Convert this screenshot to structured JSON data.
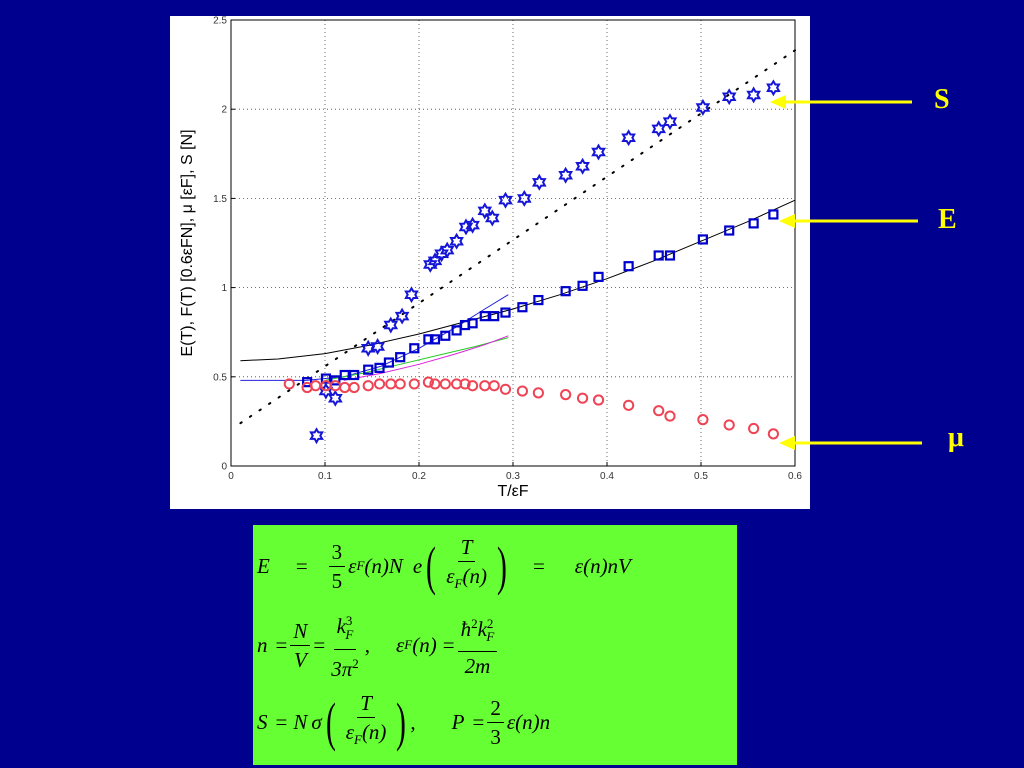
{
  "chart_data": {
    "type": "scatter",
    "xlabel": "T/εF",
    "ylabel": "E(T), F(T) [0.6εFN], μ [εF], S [N]",
    "xlim": [
      0,
      0.6
    ],
    "ylim": [
      0,
      2.5
    ],
    "xticks": [
      "0",
      "0.1",
      "0.2",
      "0.3",
      "0.4",
      "0.5",
      "0.6"
    ],
    "yticks": [
      "0",
      "0.5",
      "1",
      "1.5",
      "2",
      "2.5"
    ],
    "grid": true,
    "series": [
      {
        "marker": "star",
        "color": "#1515d8",
        "x": [
          0.091,
          0.101,
          0.111,
          0.146,
          0.156,
          0.17,
          0.182,
          0.192,
          0.212,
          0.217,
          0.224,
          0.23,
          0.24,
          0.25,
          0.257,
          0.27,
          0.278,
          0.292,
          0.312,
          0.328,
          0.356,
          0.374,
          0.391,
          0.423,
          0.455,
          0.467,
          0.502,
          0.53,
          0.556,
          0.577
        ],
        "y": [
          0.17,
          0.42,
          0.38,
          0.66,
          0.67,
          0.79,
          0.84,
          0.96,
          1.13,
          1.15,
          1.19,
          1.21,
          1.26,
          1.34,
          1.35,
          1.43,
          1.39,
          1.49,
          1.5,
          1.59,
          1.63,
          1.68,
          1.76,
          1.84,
          1.89,
          1.93,
          2.01,
          2.07,
          2.08,
          2.12
        ]
      },
      {
        "marker": "square",
        "color": "#0000cc",
        "x": [
          0.081,
          0.101,
          0.111,
          0.121,
          0.131,
          0.146,
          0.158,
          0.168,
          0.18,
          0.195,
          0.21,
          0.217,
          0.228,
          0.24,
          0.249,
          0.257,
          0.27,
          0.28,
          0.292,
          0.31,
          0.327,
          0.356,
          0.374,
          0.391,
          0.423,
          0.455,
          0.467,
          0.502,
          0.53,
          0.556,
          0.577
        ],
        "y": [
          0.47,
          0.49,
          0.48,
          0.51,
          0.51,
          0.54,
          0.55,
          0.58,
          0.61,
          0.66,
          0.71,
          0.71,
          0.73,
          0.76,
          0.79,
          0.8,
          0.84,
          0.84,
          0.86,
          0.89,
          0.93,
          0.98,
          1.01,
          1.06,
          1.12,
          1.18,
          1.18,
          1.27,
          1.32,
          1.36,
          1.41
        ]
      },
      {
        "marker": "circle",
        "color": "#ee4455",
        "x": [
          0.062,
          0.081,
          0.09,
          0.101,
          0.111,
          0.121,
          0.131,
          0.146,
          0.158,
          0.17,
          0.18,
          0.195,
          0.21,
          0.217,
          0.228,
          0.24,
          0.249,
          0.257,
          0.27,
          0.28,
          0.292,
          0.31,
          0.327,
          0.356,
          0.374,
          0.391,
          0.423,
          0.455,
          0.467,
          0.502,
          0.53,
          0.556,
          0.577
        ],
        "y": [
          0.46,
          0.44,
          0.45,
          0.45,
          0.45,
          0.44,
          0.44,
          0.45,
          0.46,
          0.46,
          0.46,
          0.46,
          0.47,
          0.46,
          0.46,
          0.46,
          0.46,
          0.45,
          0.45,
          0.45,
          0.43,
          0.42,
          0.41,
          0.4,
          0.38,
          0.37,
          0.34,
          0.31,
          0.28,
          0.26,
          0.23,
          0.21,
          0.18
        ]
      }
    ],
    "curves": [
      {
        "style": "dotted",
        "color": "#000000",
        "x": [
          0.01,
          0.6
        ],
        "y": [
          0.24,
          2.33
        ]
      },
      {
        "style": "solid",
        "color": "#000000",
        "x": [
          0.01,
          0.05,
          0.1,
          0.15,
          0.2,
          0.25,
          0.3,
          0.35,
          0.4,
          0.45,
          0.5,
          0.55,
          0.6
        ],
        "y": [
          0.59,
          0.6,
          0.63,
          0.68,
          0.74,
          0.81,
          0.88,
          0.96,
          1.05,
          1.15,
          1.26,
          1.37,
          1.49
        ]
      },
      {
        "style": "solid",
        "color": "#2222dd",
        "x": [
          0.01,
          0.08,
          0.12,
          0.16,
          0.2,
          0.24,
          0.27,
          0.295
        ],
        "y": [
          0.48,
          0.48,
          0.5,
          0.56,
          0.66,
          0.78,
          0.88,
          0.96
        ]
      },
      {
        "style": "solid",
        "color": "#22cc22",
        "x": [
          0.1,
          0.14,
          0.18,
          0.22,
          0.26,
          0.295
        ],
        "y": [
          0.48,
          0.52,
          0.57,
          0.62,
          0.67,
          0.72
        ]
      },
      {
        "style": "solid",
        "color": "#dd22dd",
        "x": [
          0.12,
          0.16,
          0.2,
          0.24,
          0.27,
          0.295
        ],
        "y": [
          0.48,
          0.52,
          0.57,
          0.63,
          0.68,
          0.73
        ]
      }
    ],
    "annotations": [
      "S",
      "E",
      "μ"
    ]
  },
  "labels": {
    "s": "S",
    "e": "E",
    "mu": "μ"
  },
  "colors": {
    "background": "#00008e",
    "label": "#ffff00",
    "formula_box": "#66ff33"
  },
  "formulas": {
    "e_lhs": "E",
    "eq": "=",
    "three": "3",
    "five": "5",
    "eps": "ε",
    "f": "F",
    "n_arg": "(n)",
    "N": "N",
    "e_func": "e",
    "T": "T",
    "rhs1": "ε(n)nV",
    "n_lhs": "n",
    "V": "V",
    "k": "k",
    "three_sup": "3",
    "two_sup": "2",
    "three_pi": "3π",
    "comma": ",",
    "hbar": "ħ",
    "two_m": "2m",
    "s_lhs": "S",
    "sigma": "σ",
    "p_lhs": "P",
    "two": "2",
    "rhs3": "ε(n)n"
  }
}
